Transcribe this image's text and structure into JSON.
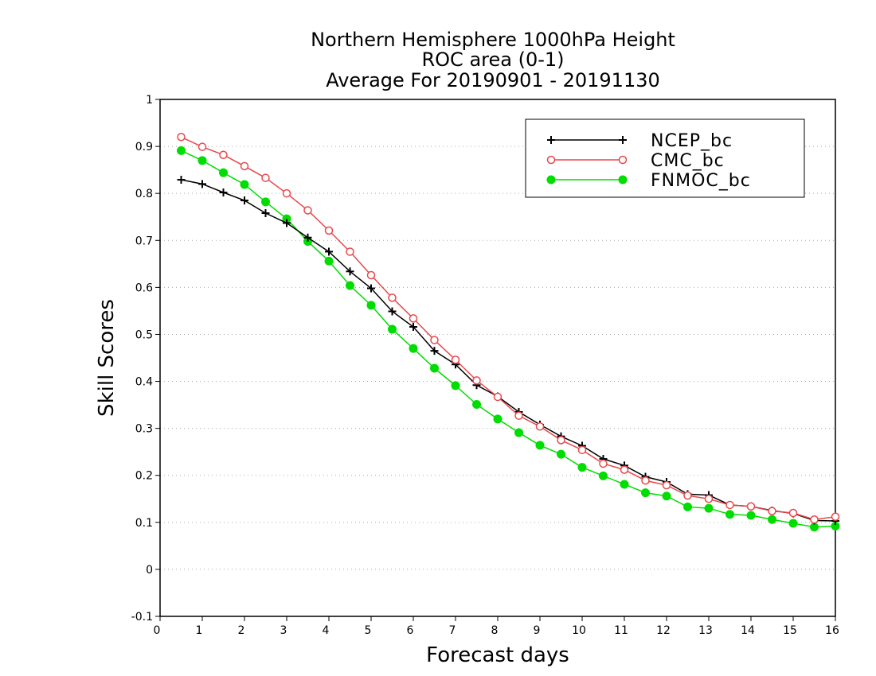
{
  "chart_data": {
    "type": "line",
    "title_lines": [
      "Northern Hemisphere 1000hPa Height",
      "ROC area (0-1)",
      "Average For 20190901 - 20191130"
    ],
    "xlabel": "Forecast days",
    "ylabel": "Skill Scores",
    "xlim": [
      0,
      16
    ],
    "ylim": [
      -0.1,
      1
    ],
    "xticks": [
      "0",
      "1",
      "2",
      "3",
      "4",
      "5",
      "6",
      "7",
      "8",
      "9",
      "10",
      "11",
      "12",
      "13",
      "14",
      "15",
      "16"
    ],
    "yticks": [
      "1",
      "0.9",
      "0.8",
      "0.7",
      "0.6",
      "0.5",
      "0.4",
      "0.3",
      "0.2",
      "0.1",
      "0",
      "-0.1"
    ],
    "grid": "horizontal dotted",
    "legend_position": "top-right",
    "x": [
      0.5,
      1,
      1.5,
      2,
      2.5,
      3,
      3.5,
      4,
      4.5,
      5,
      5.5,
      6,
      6.5,
      7,
      7.5,
      8,
      8.5,
      9,
      9.5,
      10,
      10.5,
      11,
      11.5,
      12,
      12.5,
      13,
      13.5,
      14,
      14.5,
      15,
      15.5,
      16
    ],
    "series": [
      {
        "name": "NCEP_bc",
        "color": "#000000",
        "marker": "plus",
        "values": [
          0.829,
          0.82,
          0.802,
          0.785,
          0.758,
          0.737,
          0.706,
          0.676,
          0.634,
          0.598,
          0.549,
          0.516,
          0.465,
          0.436,
          0.392,
          0.368,
          0.335,
          0.308,
          0.283,
          0.263,
          0.235,
          0.221,
          0.197,
          0.186,
          0.16,
          0.158,
          0.137,
          0.134,
          0.125,
          0.119,
          0.104,
          0.103
        ]
      },
      {
        "name": "CMC_bc",
        "color": "#e8474b",
        "marker": "open-circle",
        "values": [
          0.92,
          0.899,
          0.882,
          0.858,
          0.833,
          0.8,
          0.764,
          0.721,
          0.676,
          0.626,
          0.578,
          0.534,
          0.488,
          0.446,
          0.402,
          0.367,
          0.327,
          0.304,
          0.275,
          0.254,
          0.225,
          0.212,
          0.189,
          0.179,
          0.157,
          0.15,
          0.137,
          0.134,
          0.124,
          0.12,
          0.106,
          0.112
        ]
      },
      {
        "name": "FNMOC_bc",
        "color": "#00dd00",
        "marker": "filled-circle",
        "values": [
          0.891,
          0.87,
          0.844,
          0.819,
          0.782,
          0.746,
          0.698,
          0.656,
          0.604,
          0.562,
          0.511,
          0.47,
          0.428,
          0.391,
          0.351,
          0.32,
          0.291,
          0.264,
          0.245,
          0.217,
          0.199,
          0.181,
          0.163,
          0.156,
          0.133,
          0.13,
          0.117,
          0.115,
          0.106,
          0.098,
          0.09,
          0.092
        ]
      }
    ]
  }
}
